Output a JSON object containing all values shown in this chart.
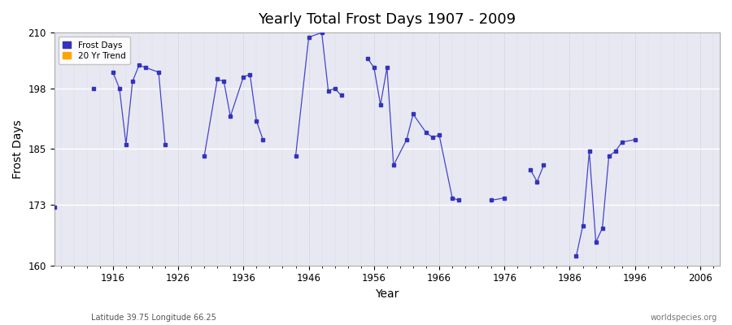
{
  "title": "Yearly Total Frost Days 1907 - 2009",
  "xlabel": "Year",
  "ylabel": "Frost Days",
  "xlim": [
    1907,
    2009
  ],
  "ylim": [
    160,
    210
  ],
  "yticks": [
    160,
    173,
    185,
    198,
    210
  ],
  "xticks": [
    1916,
    1926,
    1936,
    1946,
    1956,
    1966,
    1976,
    1986,
    1996,
    2006
  ],
  "line_color": "#4444cc",
  "point_color": "#3333bb",
  "bg_color": "#e8e8f2",
  "subtitle_left": "Latitude 39.75 Longitude 66.25",
  "subtitle_right": "worldspecies.org",
  "legend_items": [
    "Frost Days",
    "20 Yr Trend"
  ],
  "legend_colors": [
    "#3333bb",
    "#FFA500"
  ],
  "years": [
    1907,
    1908,
    1909,
    1910,
    1911,
    1912,
    1913,
    1914,
    1915,
    1916,
    1917,
    1918,
    1919,
    1920,
    1921,
    1922,
    1923,
    1924,
    1925,
    1926,
    1927,
    1928,
    1929,
    1930,
    1931,
    1932,
    1933,
    1934,
    1935,
    1936,
    1937,
    1938,
    1939,
    1940,
    1941,
    1942,
    1943,
    1944,
    1945,
    1946,
    1947,
    1948,
    1949,
    1950,
    1951,
    1952,
    1953,
    1954,
    1955,
    1956,
    1957,
    1958,
    1959,
    1960,
    1961,
    1962,
    1963,
    1964,
    1965,
    1966,
    1967,
    1968,
    1969,
    1970,
    1971,
    1972,
    1973,
    1974,
    1975,
    1976,
    1977,
    1978,
    1979,
    1980,
    1981,
    1982,
    1983,
    1984,
    1985,
    1986,
    1987,
    1988,
    1989,
    1990,
    1991,
    1992,
    1993,
    1994,
    1995,
    1996,
    1997,
    1998,
    1999,
    2000,
    2001,
    2002,
    2003,
    2004,
    2005,
    2006,
    2007,
    2008,
    2009
  ],
  "values": [
    172.5,
    null,
    null,
    null,
    null,
    null,
    198.0,
    null,
    null,
    201.5,
    198.0,
    186.0,
    199.5,
    203.0,
    202.5,
    null,
    201.5,
    186.0,
    null,
    null,
    null,
    null,
    null,
    183.5,
    null,
    200.0,
    199.5,
    192.0,
    null,
    200.5,
    201.0,
    191.0,
    187.0,
    null,
    null,
    null,
    null,
    183.5,
    null,
    209.0,
    null,
    210.0,
    197.5,
    198.0,
    196.5,
    null,
    null,
    null,
    204.5,
    202.5,
    194.5,
    202.5,
    181.5,
    null,
    187.0,
    192.5,
    null,
    188.5,
    187.5,
    188.0,
    null,
    174.5,
    174.0,
    null,
    null,
    null,
    null,
    174.0,
    null,
    174.5,
    null,
    null,
    null,
    180.5,
    178.0,
    181.5,
    null,
    null,
    null,
    null,
    162.0,
    168.5,
    184.5,
    165.0,
    168.0,
    183.5,
    184.5,
    186.5,
    null,
    187.0,
    null,
    null,
    null,
    null,
    null,
    null,
    null,
    null,
    null,
    null,
    null,
    null,
    null
  ]
}
